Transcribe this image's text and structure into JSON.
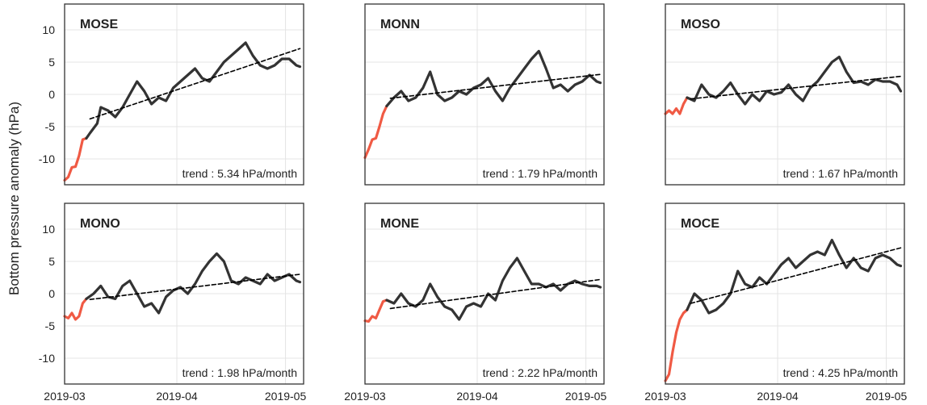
{
  "figure": {
    "ylabel": "Bottom pressure anomaly (hPa)"
  },
  "chart_data": [
    {
      "type": "line",
      "title": "MOSE",
      "trend_text": "trend : 5.34 hPa/month",
      "xlabel": "",
      "ylabel": "Bottom pressure anomaly (hPa)",
      "xlim": [
        "2019-03-01",
        "2019-05-06"
      ],
      "ylim": [
        -14,
        14
      ],
      "xticks": [
        "2019-03",
        "2019-04",
        "2019-05"
      ],
      "yticks": [
        10,
        5,
        0,
        -5,
        -10
      ],
      "grid": true,
      "series": [
        {
          "color": "#f05a44",
          "x": [
            "2019-03-01",
            "2019-03-02",
            "2019-03-03",
            "2019-03-04",
            "2019-03-05",
            "2019-03-06",
            "2019-03-07"
          ],
          "y": [
            -13.3,
            -12.8,
            -11.3,
            -11.2,
            -9.5,
            -7.0,
            -6.8
          ]
        },
        {
          "color": "#333333",
          "x": [
            "2019-03-07",
            "2019-03-08",
            "2019-03-10",
            "2019-03-11",
            "2019-03-13",
            "2019-03-15",
            "2019-03-17",
            "2019-03-19",
            "2019-03-21",
            "2019-03-23",
            "2019-03-25",
            "2019-03-27",
            "2019-03-29",
            "2019-03-31",
            "2019-04-02",
            "2019-04-04",
            "2019-04-06",
            "2019-04-08",
            "2019-04-10",
            "2019-04-12",
            "2019-04-14",
            "2019-04-16",
            "2019-04-18",
            "2019-04-20",
            "2019-04-22",
            "2019-04-24",
            "2019-04-26",
            "2019-04-28",
            "2019-04-30",
            "2019-05-02",
            "2019-05-04",
            "2019-05-05"
          ],
          "y": [
            -6.8,
            -6.0,
            -4.5,
            -2.0,
            -2.5,
            -3.5,
            -2.0,
            0.0,
            2.0,
            0.5,
            -1.5,
            -0.5,
            -1.0,
            1.0,
            2.0,
            3.0,
            4.0,
            2.5,
            2.0,
            3.5,
            5.0,
            6.0,
            7.0,
            8.0,
            6.0,
            4.5,
            4.0,
            4.5,
            5.5,
            5.5,
            4.5,
            4.3
          ]
        },
        {
          "color": "#000000",
          "dashed": true,
          "name": "trend",
          "x": [
            "2019-03-08",
            "2019-05-05"
          ],
          "y": [
            -3.8,
            7.1
          ]
        }
      ]
    },
    {
      "type": "line",
      "title": "MONN",
      "trend_text": "trend : 1.79 hPa/month",
      "xlabel": "",
      "ylabel": "",
      "xlim": [
        "2019-03-01",
        "2019-05-06"
      ],
      "ylim": [
        -14,
        14
      ],
      "xticks": [
        "2019-03",
        "2019-04",
        "2019-05"
      ],
      "yticks": [
        10,
        5,
        0,
        -5,
        -10
      ],
      "grid": true,
      "series": [
        {
          "color": "#f05a44",
          "x": [
            "2019-03-01",
            "2019-03-02",
            "2019-03-03",
            "2019-03-04",
            "2019-03-05",
            "2019-03-06",
            "2019-03-07"
          ],
          "y": [
            -9.8,
            -8.5,
            -7.0,
            -6.8,
            -5.0,
            -3.0,
            -1.8
          ]
        },
        {
          "color": "#333333",
          "x": [
            "2019-03-07",
            "2019-03-09",
            "2019-03-11",
            "2019-03-13",
            "2019-03-15",
            "2019-03-17",
            "2019-03-19",
            "2019-03-21",
            "2019-03-23",
            "2019-03-25",
            "2019-03-27",
            "2019-03-29",
            "2019-03-31",
            "2019-04-02",
            "2019-04-04",
            "2019-04-06",
            "2019-04-08",
            "2019-04-10",
            "2019-04-12",
            "2019-04-14",
            "2019-04-16",
            "2019-04-18",
            "2019-04-20",
            "2019-04-22",
            "2019-04-24",
            "2019-04-26",
            "2019-04-28",
            "2019-04-30",
            "2019-05-02",
            "2019-05-04",
            "2019-05-05"
          ],
          "y": [
            -1.8,
            -0.5,
            0.5,
            -1.0,
            -0.5,
            1.0,
            3.5,
            0.0,
            -1.0,
            -0.5,
            0.5,
            0.0,
            1.0,
            1.5,
            2.5,
            0.5,
            -1.0,
            1.0,
            2.5,
            4.0,
            5.5,
            6.7,
            4.0,
            1.0,
            1.5,
            0.5,
            1.5,
            2.0,
            3.0,
            2.0,
            1.8
          ]
        },
        {
          "color": "#000000",
          "dashed": true,
          "name": "trend",
          "x": [
            "2019-03-08",
            "2019-05-05"
          ],
          "y": [
            -0.6,
            3.1
          ]
        }
      ]
    },
    {
      "type": "line",
      "title": "MOSO",
      "trend_text": "trend : 1.67 hPa/month",
      "xlabel": "",
      "ylabel": "",
      "xlim": [
        "2019-03-01",
        "2019-05-06"
      ],
      "ylim": [
        -14,
        14
      ],
      "xticks": [
        "2019-03",
        "2019-04",
        "2019-05"
      ],
      "yticks": [
        10,
        5,
        0,
        -5,
        -10
      ],
      "grid": true,
      "series": [
        {
          "color": "#f05a44",
          "x": [
            "2019-03-01",
            "2019-03-02",
            "2019-03-03",
            "2019-03-04",
            "2019-03-05",
            "2019-03-06",
            "2019-03-07"
          ],
          "y": [
            -3.0,
            -2.5,
            -3.0,
            -2.2,
            -3.0,
            -1.5,
            -0.5
          ]
        },
        {
          "color": "#333333",
          "x": [
            "2019-03-07",
            "2019-03-09",
            "2019-03-11",
            "2019-03-13",
            "2019-03-15",
            "2019-03-17",
            "2019-03-19",
            "2019-03-21",
            "2019-03-23",
            "2019-03-25",
            "2019-03-27",
            "2019-03-29",
            "2019-03-31",
            "2019-04-02",
            "2019-04-04",
            "2019-04-06",
            "2019-04-08",
            "2019-04-10",
            "2019-04-12",
            "2019-04-14",
            "2019-04-16",
            "2019-04-18",
            "2019-04-20",
            "2019-04-22",
            "2019-04-24",
            "2019-04-26",
            "2019-04-28",
            "2019-04-30",
            "2019-05-02",
            "2019-05-04",
            "2019-05-05"
          ],
          "y": [
            -0.5,
            -1.0,
            1.5,
            0.0,
            -0.5,
            0.5,
            1.8,
            0.0,
            -1.5,
            0.0,
            -1.0,
            0.5,
            0.0,
            0.3,
            1.5,
            0.0,
            -1.0,
            1.0,
            2.0,
            3.5,
            5.0,
            5.8,
            3.5,
            1.8,
            2.0,
            1.5,
            2.3,
            2.0,
            2.0,
            1.5,
            0.5
          ]
        },
        {
          "color": "#000000",
          "dashed": true,
          "name": "trend",
          "x": [
            "2019-03-08",
            "2019-05-05"
          ],
          "y": [
            -0.7,
            2.8
          ]
        }
      ]
    },
    {
      "type": "line",
      "title": "MONO",
      "trend_text": "trend : 1.98 hPa/month",
      "xlabel": "",
      "ylabel": "",
      "xlim": [
        "2019-03-01",
        "2019-05-06"
      ],
      "ylim": [
        -14,
        14
      ],
      "xticks": [
        "2019-03",
        "2019-04",
        "2019-05"
      ],
      "yticks": [
        10,
        5,
        0,
        -5,
        -10
      ],
      "grid": true,
      "series": [
        {
          "color": "#f05a44",
          "x": [
            "2019-03-01",
            "2019-03-02",
            "2019-03-03",
            "2019-03-04",
            "2019-03-05",
            "2019-03-06",
            "2019-03-07"
          ],
          "y": [
            -3.5,
            -3.8,
            -3.0,
            -4.0,
            -3.5,
            -1.5,
            -0.8
          ]
        },
        {
          "color": "#333333",
          "x": [
            "2019-03-07",
            "2019-03-09",
            "2019-03-11",
            "2019-03-13",
            "2019-03-15",
            "2019-03-17",
            "2019-03-19",
            "2019-03-21",
            "2019-03-23",
            "2019-03-25",
            "2019-03-27",
            "2019-03-29",
            "2019-03-31",
            "2019-04-02",
            "2019-04-04",
            "2019-04-06",
            "2019-04-08",
            "2019-04-10",
            "2019-04-12",
            "2019-04-14",
            "2019-04-16",
            "2019-04-18",
            "2019-04-20",
            "2019-04-22",
            "2019-04-24",
            "2019-04-26",
            "2019-04-28",
            "2019-04-30",
            "2019-05-02",
            "2019-05-04",
            "2019-05-05"
          ],
          "y": [
            -0.8,
            0.0,
            1.2,
            -0.5,
            -0.8,
            1.2,
            2.0,
            0.0,
            -2.0,
            -1.5,
            -3.0,
            -0.5,
            0.5,
            1.0,
            0.0,
            1.5,
            3.5,
            5.0,
            6.2,
            5.0,
            2.0,
            1.5,
            2.5,
            2.0,
            1.5,
            3.0,
            2.0,
            2.5,
            3.0,
            2.0,
            1.8
          ]
        },
        {
          "color": "#000000",
          "dashed": true,
          "name": "trend",
          "x": [
            "2019-03-08",
            "2019-05-05"
          ],
          "y": [
            -0.9,
            3.0
          ]
        }
      ]
    },
    {
      "type": "line",
      "title": "MONE",
      "trend_text": "trend : 2.22 hPa/month",
      "xlabel": "",
      "ylabel": "",
      "xlim": [
        "2019-03-01",
        "2019-05-06"
      ],
      "ylim": [
        -14,
        14
      ],
      "xticks": [
        "2019-03",
        "2019-04",
        "2019-05"
      ],
      "yticks": [
        10,
        5,
        0,
        -5,
        -10
      ],
      "grid": true,
      "series": [
        {
          "color": "#f05a44",
          "x": [
            "2019-03-01",
            "2019-03-02",
            "2019-03-03",
            "2019-03-04",
            "2019-03-05",
            "2019-03-06",
            "2019-03-07"
          ],
          "y": [
            -4.2,
            -4.3,
            -3.5,
            -3.8,
            -2.5,
            -1.2,
            -1.0
          ]
        },
        {
          "color": "#333333",
          "x": [
            "2019-03-07",
            "2019-03-09",
            "2019-03-11",
            "2019-03-13",
            "2019-03-15",
            "2019-03-17",
            "2019-03-19",
            "2019-03-21",
            "2019-03-23",
            "2019-03-25",
            "2019-03-27",
            "2019-03-29",
            "2019-03-31",
            "2019-04-02",
            "2019-04-04",
            "2019-04-06",
            "2019-04-08",
            "2019-04-10",
            "2019-04-12",
            "2019-04-14",
            "2019-04-16",
            "2019-04-18",
            "2019-04-20",
            "2019-04-22",
            "2019-04-24",
            "2019-04-26",
            "2019-04-28",
            "2019-04-30",
            "2019-05-02",
            "2019-05-04",
            "2019-05-05"
          ],
          "y": [
            -1.0,
            -1.5,
            0.0,
            -1.5,
            -2.0,
            -1.0,
            1.5,
            -0.5,
            -2.0,
            -2.5,
            -4.0,
            -2.0,
            -1.5,
            -2.0,
            0.0,
            -1.0,
            2.0,
            4.0,
            5.5,
            3.5,
            1.5,
            1.5,
            1.0,
            1.5,
            0.5,
            1.5,
            2.0,
            1.5,
            1.2,
            1.2,
            1.0
          ]
        },
        {
          "color": "#000000",
          "dashed": true,
          "name": "trend",
          "x": [
            "2019-03-08",
            "2019-05-05"
          ],
          "y": [
            -2.3,
            2.2
          ]
        }
      ]
    },
    {
      "type": "line",
      "title": "MOCE",
      "trend_text": "trend : 4.25 hPa/month",
      "xlabel": "",
      "ylabel": "",
      "xlim": [
        "2019-03-01",
        "2019-05-06"
      ],
      "ylim": [
        -14,
        14
      ],
      "xticks": [
        "2019-03",
        "2019-04",
        "2019-05"
      ],
      "yticks": [
        10,
        5,
        0,
        -5,
        -10
      ],
      "grid": true,
      "series": [
        {
          "color": "#f05a44",
          "x": [
            "2019-03-01",
            "2019-03-02",
            "2019-03-03",
            "2019-03-04",
            "2019-03-05",
            "2019-03-06",
            "2019-03-07"
          ],
          "y": [
            -13.5,
            -12.5,
            -9.0,
            -6.0,
            -4.0,
            -3.0,
            -2.5
          ]
        },
        {
          "color": "#333333",
          "x": [
            "2019-03-07",
            "2019-03-09",
            "2019-03-11",
            "2019-03-13",
            "2019-03-15",
            "2019-03-17",
            "2019-03-19",
            "2019-03-21",
            "2019-03-23",
            "2019-03-25",
            "2019-03-27",
            "2019-03-29",
            "2019-03-31",
            "2019-04-02",
            "2019-04-04",
            "2019-04-06",
            "2019-04-08",
            "2019-04-10",
            "2019-04-12",
            "2019-04-14",
            "2019-04-16",
            "2019-04-18",
            "2019-04-20",
            "2019-04-22",
            "2019-04-24",
            "2019-04-26",
            "2019-04-28",
            "2019-04-30",
            "2019-05-02",
            "2019-05-04",
            "2019-05-05"
          ],
          "y": [
            -2.5,
            0.0,
            -1.0,
            -3.0,
            -2.5,
            -1.5,
            0.0,
            3.5,
            1.5,
            1.0,
            2.5,
            1.5,
            3.0,
            4.5,
            5.5,
            4.0,
            5.0,
            6.0,
            6.5,
            6.0,
            8.3,
            6.0,
            4.0,
            5.5,
            4.0,
            3.5,
            5.5,
            6.0,
            5.5,
            4.5,
            4.3
          ]
        },
        {
          "color": "#000000",
          "dashed": true,
          "name": "trend",
          "x": [
            "2019-03-08",
            "2019-05-05"
          ],
          "y": [
            -1.5,
            7.1
          ]
        }
      ]
    }
  ]
}
